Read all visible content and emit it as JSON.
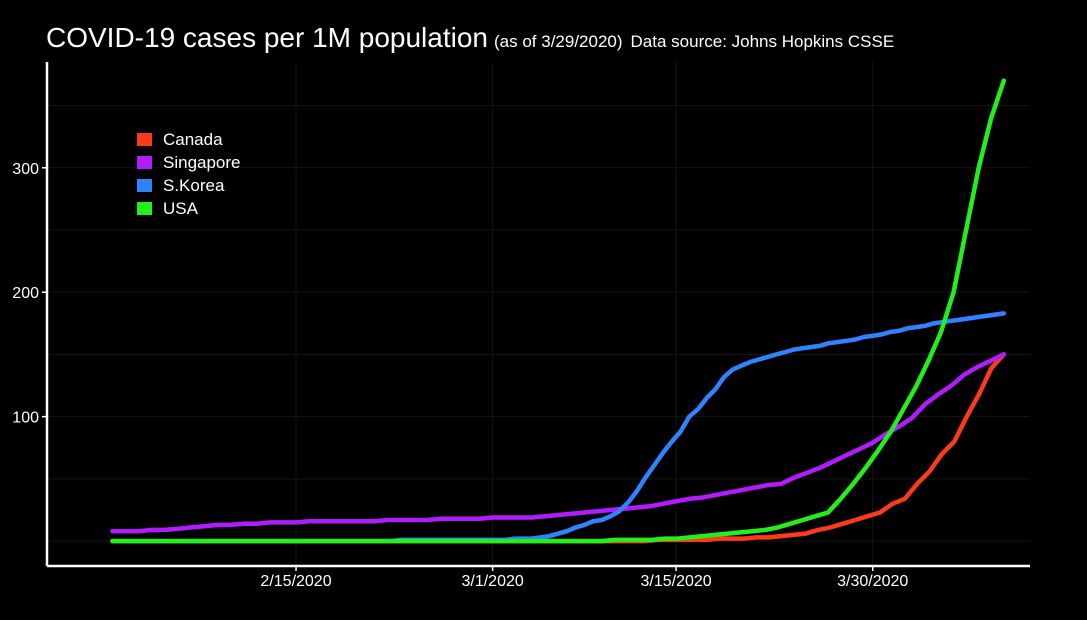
{
  "header": {
    "title": "COVID-19 cases per 1M population",
    "subtitle": "(as of 3/29/2020)",
    "source": "Data source: Johns Hopkins CSSE"
  },
  "colors": {
    "background": "#000000",
    "axis": "#ffffff",
    "grid": "#141414",
    "Canada": "#ff3a1a",
    "Singapore": "#b31bff",
    "S.Korea": "#2f83ff",
    "USA": "#22f01a"
  },
  "chart_data": {
    "type": "line",
    "title": "COVID-19 cases per 1M population",
    "xlabel": "",
    "ylabel": "",
    "x_start_day": 0,
    "x_end_day": 68,
    "xlim": [
      -5,
      70
    ],
    "ylim": [
      -20,
      385
    ],
    "x_ticks": [
      {
        "day": 14,
        "label": "2/15/2020"
      },
      {
        "day": 29,
        "label": "3/1/2020"
      },
      {
        "day": 43,
        "label": "3/15/2020"
      },
      {
        "day": 58,
        "label": "3/30/2020"
      }
    ],
    "y_ticks": [
      {
        "value": 100,
        "label": "100"
      },
      {
        "value": 200,
        "label": "200"
      },
      {
        "value": 300,
        "label": "300"
      }
    ],
    "y_minor_gridlines": [
      0,
      50,
      150,
      250,
      350
    ],
    "grid": true,
    "legend_position": "top-left",
    "series": [
      {
        "name": "Canada",
        "values": [
          0,
          0,
          0,
          0,
          0,
          0,
          0,
          0,
          0,
          0,
          0,
          0,
          0,
          0,
          0,
          0,
          0,
          0,
          0,
          0,
          0,
          0,
          0,
          0,
          0,
          0,
          0,
          0,
          0,
          0,
          0,
          0,
          0,
          0,
          0,
          0,
          0,
          0,
          0,
          0,
          0,
          0,
          0,
          0,
          1,
          1,
          1,
          1,
          1,
          2,
          2,
          2,
          3,
          3,
          4,
          5,
          6,
          9,
          11,
          14,
          17,
          20,
          23,
          30,
          34,
          46,
          56,
          70,
          80,
          100,
          118,
          139,
          150
        ]
      },
      {
        "name": "Singapore",
        "values": [
          8,
          8,
          8,
          9,
          9,
          10,
          11,
          12,
          13,
          13,
          14,
          14,
          15,
          15,
          15,
          16,
          16,
          16,
          16,
          16,
          16,
          17,
          17,
          17,
          17,
          18,
          18,
          18,
          18,
          19,
          19,
          19,
          19,
          20,
          21,
          22,
          23,
          24,
          25,
          26,
          27,
          28,
          30,
          32,
          34,
          35,
          37,
          39,
          41,
          43,
          45,
          46,
          51,
          55,
          59,
          64,
          69,
          74,
          79,
          86,
          92,
          99,
          110,
          118,
          125,
          134,
          140,
          145,
          150
        ]
      },
      {
        "name": "S.Korea",
        "values": [
          0,
          0,
          0,
          0,
          0,
          0,
          0,
          0,
          0,
          0,
          0,
          0,
          0,
          0,
          0,
          0,
          0,
          0,
          0,
          0,
          0,
          0,
          0,
          0,
          0,
          0,
          0,
          0,
          0,
          0,
          0,
          0,
          0,
          1,
          1,
          1,
          1,
          1,
          1,
          1,
          1,
          1,
          1,
          1,
          1,
          1,
          2,
          2,
          2,
          3,
          4,
          6,
          8,
          11,
          13,
          16,
          17,
          20,
          24,
          31,
          40,
          51,
          61,
          71,
          80,
          88,
          100,
          106,
          115,
          122,
          132,
          138,
          141,
          144,
          146,
          148,
          150,
          152,
          154,
          155,
          156,
          157,
          159,
          160,
          161,
          162,
          164,
          165,
          166,
          168,
          169,
          171,
          172,
          173,
          175,
          176,
          177,
          178,
          179,
          180,
          181,
          182,
          183
        ]
      },
      {
        "name": "USA",
        "values": [
          0,
          0,
          0,
          0,
          0,
          0,
          0,
          0,
          0,
          0,
          0,
          0,
          0,
          0,
          0,
          0,
          0,
          0,
          0,
          0,
          0,
          0,
          0,
          0,
          0,
          0,
          0,
          0,
          0,
          0,
          0,
          0,
          0,
          0,
          0,
          0,
          0,
          0,
          0,
          0,
          1,
          1,
          1,
          1,
          2,
          2,
          3,
          4,
          5,
          6,
          7,
          8,
          9,
          11,
          14,
          17,
          20,
          23,
          34,
          46,
          59,
          73,
          88,
          106,
          124,
          145,
          168,
          200,
          250,
          300,
          340,
          370
        ]
      }
    ]
  }
}
